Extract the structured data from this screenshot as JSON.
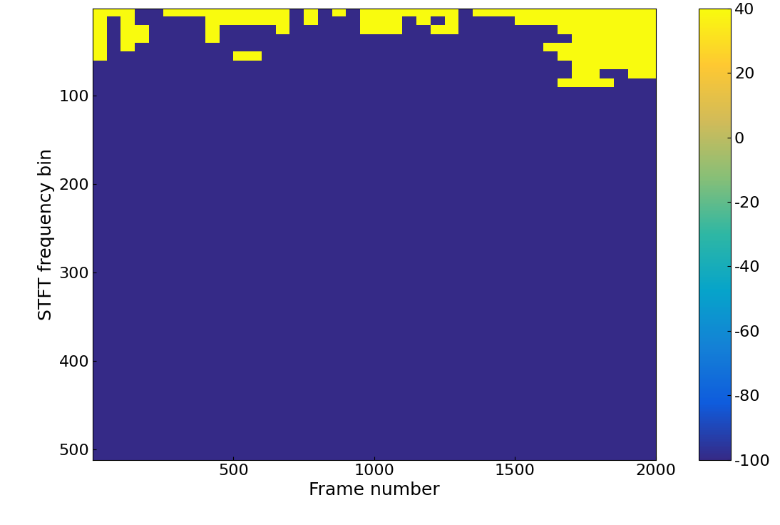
{
  "chart_data": {
    "type": "heatmap",
    "x_label": "Frame number",
    "y_label": "STFT frequency bin",
    "xlim": [
      1,
      2000
    ],
    "xticks": [
      500,
      1000,
      1500,
      2000
    ],
    "ylim": [
      512,
      1
    ],
    "yticks": [
      100,
      200,
      300,
      400,
      500
    ],
    "x_edges": [
      1,
      50,
      100,
      150,
      200,
      250,
      300,
      350,
      400,
      450,
      500,
      550,
      600,
      650,
      700,
      750,
      800,
      850,
      900,
      950,
      1000,
      1050,
      1100,
      1150,
      1200,
      1250,
      1300,
      1350,
      1400,
      1450,
      1500,
      1550,
      1600,
      1650,
      1700,
      1750,
      1800,
      1850,
      1900,
      1950,
      2000
    ],
    "y_edges": [
      1,
      10,
      20,
      30,
      40,
      50,
      60,
      70,
      80,
      90,
      100,
      200,
      300,
      400,
      512
    ],
    "cells": [
      [
        40,
        40,
        40,
        -100,
        -100,
        40,
        40,
        40,
        40,
        40,
        40,
        40,
        40,
        40,
        -100,
        40,
        -100,
        40,
        -100,
        40,
        40,
        40,
        40,
        40,
        40,
        40,
        -100,
        40,
        40,
        40,
        40,
        40,
        40,
        40,
        40,
        40,
        40,
        40,
        40,
        40
      ],
      [
        40,
        -100,
        40,
        -100,
        -100,
        -100,
        -100,
        -100,
        40,
        40,
        40,
        40,
        40,
        40,
        -100,
        40,
        -100,
        -100,
        -100,
        40,
        40,
        40,
        -100,
        40,
        -100,
        40,
        -100,
        -100,
        -100,
        -100,
        40,
        40,
        40,
        40,
        40,
        40,
        40,
        40,
        40,
        40
      ],
      [
        40,
        -100,
        40,
        40,
        -100,
        -100,
        -100,
        -100,
        40,
        -100,
        -100,
        -100,
        -100,
        40,
        -100,
        -100,
        -100,
        -100,
        -100,
        40,
        40,
        40,
        -100,
        -100,
        40,
        40,
        -100,
        -100,
        -100,
        -100,
        -100,
        -100,
        -100,
        40,
        40,
        40,
        40,
        40,
        40,
        40
      ],
      [
        40,
        -100,
        40,
        40,
        -100,
        -100,
        -100,
        -100,
        40,
        -100,
        -100,
        -100,
        -100,
        -100,
        -100,
        -100,
        -100,
        -100,
        -100,
        -100,
        -100,
        -100,
        -100,
        -100,
        -100,
        -100,
        -100,
        -100,
        -100,
        -100,
        -100,
        -100,
        -100,
        -100,
        40,
        40,
        40,
        40,
        40,
        40
      ],
      [
        40,
        -100,
        40,
        -100,
        -100,
        -100,
        -100,
        -100,
        -100,
        -100,
        -100,
        -100,
        -100,
        -100,
        -100,
        -100,
        -100,
        -100,
        -100,
        -100,
        -100,
        -100,
        -100,
        -100,
        -100,
        -100,
        -100,
        -100,
        -100,
        -100,
        -100,
        -100,
        40,
        40,
        40,
        40,
        40,
        40,
        40,
        40
      ],
      [
        40,
        -100,
        -100,
        -100,
        -100,
        -100,
        -100,
        -100,
        -100,
        -100,
        40,
        40,
        -100,
        -100,
        -100,
        -100,
        -100,
        -100,
        -100,
        -100,
        -100,
        -100,
        -100,
        -100,
        -100,
        -100,
        -100,
        -100,
        -100,
        -100,
        -100,
        -100,
        -100,
        40,
        40,
        40,
        40,
        40,
        40,
        40
      ],
      [
        -100,
        -100,
        -100,
        -100,
        -100,
        -100,
        -100,
        -100,
        -100,
        -100,
        -100,
        -100,
        -100,
        -100,
        -100,
        -100,
        -100,
        -100,
        -100,
        -100,
        -100,
        -100,
        -100,
        -100,
        -100,
        -100,
        -100,
        -100,
        -100,
        -100,
        -100,
        -100,
        -100,
        -100,
        40,
        40,
        40,
        40,
        40,
        40
      ],
      [
        -100,
        -100,
        -100,
        -100,
        -100,
        -100,
        -100,
        -100,
        -100,
        -100,
        -100,
        -100,
        -100,
        -100,
        -100,
        -100,
        -100,
        -100,
        -100,
        -100,
        -100,
        -100,
        -100,
        -100,
        -100,
        -100,
        -100,
        -100,
        -100,
        -100,
        -100,
        -100,
        -100,
        -100,
        40,
        40,
        -100,
        -100,
        40,
        40
      ],
      [
        -100,
        -100,
        -100,
        -100,
        -100,
        -100,
        -100,
        -100,
        -100,
        -100,
        -100,
        -100,
        -100,
        -100,
        -100,
        -100,
        -100,
        -100,
        -100,
        -100,
        -100,
        -100,
        -100,
        -100,
        -100,
        -100,
        -100,
        -100,
        -100,
        -100,
        -100,
        -100,
        -100,
        40,
        40,
        40,
        40,
        -100,
        -100,
        -100
      ],
      [
        -100,
        -100,
        -100,
        -100,
        -100,
        -100,
        -100,
        -100,
        -100,
        -100,
        -100,
        -100,
        -100,
        -100,
        -100,
        -100,
        -100,
        -100,
        -100,
        -100,
        -100,
        -100,
        -100,
        -100,
        -100,
        -100,
        -100,
        -100,
        -100,
        -100,
        -100,
        -100,
        -100,
        -100,
        -100,
        -100,
        -100,
        -100,
        -100,
        -100
      ],
      [
        -100,
        -100,
        -100,
        -100,
        -100,
        -100,
        -100,
        -100,
        -100,
        -100,
        -100,
        -100,
        -100,
        -100,
        -100,
        -100,
        -100,
        -100,
        -100,
        -100,
        -100,
        -100,
        -100,
        -100,
        -100,
        -100,
        -100,
        -100,
        -100,
        -100,
        -100,
        -100,
        -100,
        -100,
        -100,
        -100,
        -100,
        -100,
        -100,
        -100
      ],
      [
        -100,
        -100,
        -100,
        -100,
        -100,
        -100,
        -100,
        -100,
        -100,
        -100,
        -100,
        -100,
        -100,
        -100,
        -100,
        -100,
        -100,
        -100,
        -100,
        -100,
        -100,
        -100,
        -100,
        -100,
        -100,
        -100,
        -100,
        -100,
        -100,
        -100,
        -100,
        -100,
        -100,
        -100,
        -100,
        -100,
        -100,
        -100,
        -100,
        -100
      ],
      [
        -100,
        -100,
        -100,
        -100,
        -100,
        -100,
        -100,
        -100,
        -100,
        -100,
        -100,
        -100,
        -100,
        -100,
        -100,
        -100,
        -100,
        -100,
        -100,
        -100,
        -100,
        -100,
        -100,
        -100,
        -100,
        -100,
        -100,
        -100,
        -100,
        -100,
        -100,
        -100,
        -100,
        -100,
        -100,
        -100,
        -100,
        -100,
        -100,
        -100
      ],
      [
        -100,
        -100,
        -100,
        -100,
        -100,
        -100,
        -100,
        -100,
        -100,
        -100,
        -100,
        -100,
        -100,
        -100,
        -100,
        -100,
        -100,
        -100,
        -100,
        -100,
        -100,
        -100,
        -100,
        -100,
        -100,
        -100,
        -100,
        -100,
        -100,
        -100,
        -100,
        -100,
        -100,
        -100,
        -100,
        -100,
        -100,
        -100,
        -100,
        -100
      ]
    ],
    "colorbar_range": [
      -100,
      40
    ],
    "colorbar_ticks": [
      -100,
      -80,
      -60,
      -40,
      -20,
      0,
      20,
      40
    ]
  }
}
